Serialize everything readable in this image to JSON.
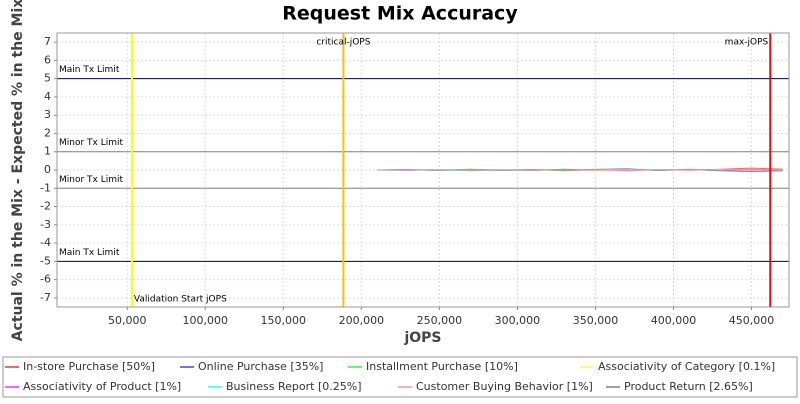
{
  "chart_data": {
    "type": "line",
    "title": "Request Mix Accuracy",
    "x_label": "jOPS",
    "y_label": "Actual % in the Mix - Expected % in the Mix",
    "xlim": [
      5000,
      474000
    ],
    "ylim": [
      -7.5,
      7.5
    ],
    "xticks": [
      {
        "value": 50000,
        "label": "50,000"
      },
      {
        "value": 100000,
        "label": "100,000"
      },
      {
        "value": 150000,
        "label": "150,000"
      },
      {
        "value": 200000,
        "label": "200,000"
      },
      {
        "value": 250000,
        "label": "250,000"
      },
      {
        "value": 300000,
        "label": "300,000"
      },
      {
        "value": 350000,
        "label": "350,000"
      },
      {
        "value": 400000,
        "label": "400,000"
      },
      {
        "value": 450000,
        "label": "450,000"
      }
    ],
    "yticks": [
      -7,
      -6,
      -5,
      -4,
      -3,
      -2,
      -1,
      0,
      1,
      2,
      3,
      4,
      5,
      6,
      7
    ],
    "grid": true,
    "limits": [
      {
        "label": "Main Tx Limit",
        "y": 5,
        "color": "#000060"
      },
      {
        "label": "Minor Tx Limit",
        "y": 1,
        "color": "#808080"
      },
      {
        "label": "Minor Tx Limit",
        "y": -1,
        "color": "#808080"
      },
      {
        "label": "Main Tx Limit",
        "y": -5,
        "color": "#000060"
      }
    ],
    "markers": [
      {
        "label": "Validation Start jOPS",
        "x": 53000,
        "color": "#ffff00"
      },
      {
        "label": "critical-jOPS",
        "x": 188500,
        "color": "#ffc000"
      },
      {
        "label": "max-jOPS",
        "x": 462000,
        "color": "#ff0000"
      }
    ],
    "x": [
      210000,
      230000,
      250000,
      270000,
      290000,
      310000,
      330000,
      350000,
      370000,
      390000,
      410000,
      430000,
      450000,
      470000
    ],
    "series": [
      {
        "name": "In-store Purchase [50%]",
        "color": "#ff6060",
        "values": [
          0,
          0.02,
          -0.03,
          0.04,
          -0.02,
          0.03,
          -0.04,
          0.02,
          -0.05,
          0.03,
          -0.02,
          0.04,
          0.1,
          0.05
        ]
      },
      {
        "name": "Online Purchase [35%]",
        "color": "#7070ff",
        "values": [
          0,
          -0.02,
          0.03,
          -0.04,
          0.02,
          -0.03,
          0.04,
          -0.02,
          0.05,
          -0.03,
          0.02,
          -0.04,
          -0.08,
          -0.04
        ]
      },
      {
        "name": "Installment Purchase [10%]",
        "color": "#60ff60",
        "values": [
          0,
          0.01,
          0,
          -0.02,
          0.03,
          0.01,
          -0.02,
          0.04,
          0.02,
          -0.01,
          0.03,
          0.01,
          0,
          0.02
        ]
      },
      {
        "name": "Associativity of Category [0.1%]",
        "color": "#ffff60",
        "values": [
          0,
          0,
          0.01,
          0,
          0,
          -0.01,
          0,
          0.01,
          0,
          0,
          0.01,
          0,
          0,
          0
        ]
      },
      {
        "name": "Associativity of Product [1%]",
        "color": "#ff60ff",
        "values": [
          0,
          0.01,
          -0.01,
          0.02,
          0,
          -0.01,
          0.01,
          0,
          -0.02,
          0.01,
          0,
          0.01,
          -0.01,
          0
        ]
      },
      {
        "name": "Business Report [0.25%]",
        "color": "#60ffff",
        "values": [
          0,
          0,
          -0.01,
          0.01,
          0,
          0,
          0.01,
          -0.01,
          0,
          0.01,
          0,
          0,
          0.01,
          0
        ]
      },
      {
        "name": "Customer Buying Behavior [1%]",
        "color": "#ffb0b0",
        "values": [
          0,
          -0.01,
          0.02,
          0,
          -0.02,
          0.01,
          0,
          -0.03,
          0.01,
          0,
          -0.01,
          0.02,
          0,
          -0.01
        ]
      },
      {
        "name": "Product Return [2.65%]",
        "color": "#a0a0a0",
        "values": [
          0,
          0.02,
          -0.02,
          0.03,
          -0.03,
          0.02,
          -0.01,
          0.03,
          0.08,
          -0.03,
          0.04,
          -0.02,
          0.03,
          -0.02
        ]
      }
    ]
  }
}
